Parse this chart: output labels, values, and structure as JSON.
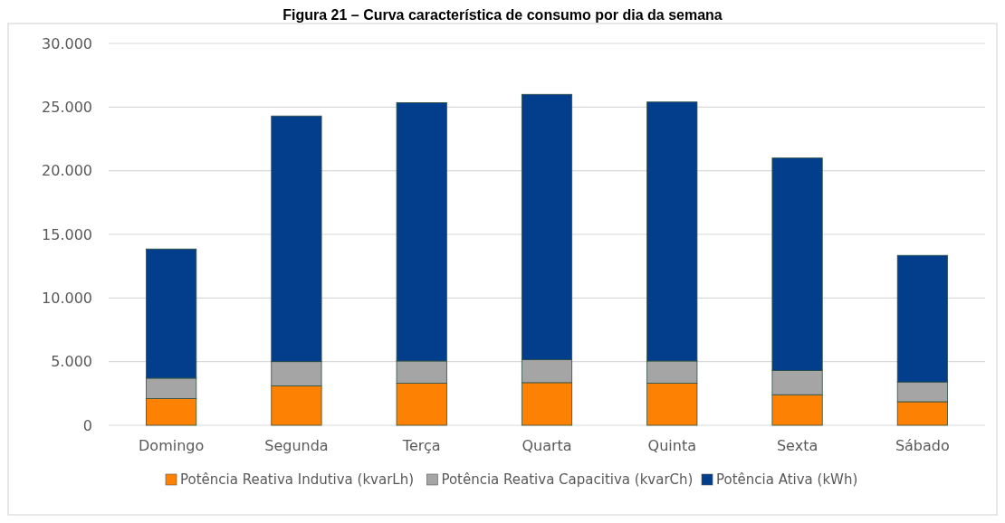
{
  "chart_data": {
    "type": "bar",
    "title": "Figura 21 – Curva característica de consumo por dia da semana",
    "stacked": true,
    "categories": [
      "Domingo",
      "Segunda",
      "Terça",
      "Quarta",
      "Quinta",
      "Sexta",
      "Sábado"
    ],
    "series": [
      {
        "name": "Potência Reativa Indutiva (kvarLh)",
        "color": "#fd8204",
        "values": [
          2100,
          3100,
          3300,
          3350,
          3300,
          2400,
          1850
        ]
      },
      {
        "name": "Potência Reativa Capacitiva (kvarCh)",
        "color": "#a5a5a5",
        "values": [
          1600,
          1900,
          1750,
          1800,
          1750,
          1900,
          1550
        ]
      },
      {
        "name": "Potência Ativa (kWh)",
        "color": "#033e8c",
        "values": [
          10150,
          19300,
          20300,
          20850,
          20350,
          16700,
          9950
        ]
      }
    ],
    "ylim": [
      0,
      30000
    ],
    "yticks": [
      {
        "value": 0,
        "label": "0"
      },
      {
        "value": 5000,
        "label": "5.000"
      },
      {
        "value": 10000,
        "label": "10.000"
      },
      {
        "value": 15000,
        "label": "15.000"
      },
      {
        "value": 20000,
        "label": "20.000"
      },
      {
        "value": 25000,
        "label": "25.000"
      },
      {
        "value": 30000,
        "label": "30.000"
      }
    ],
    "grid": "y",
    "legend": "bottom"
  }
}
